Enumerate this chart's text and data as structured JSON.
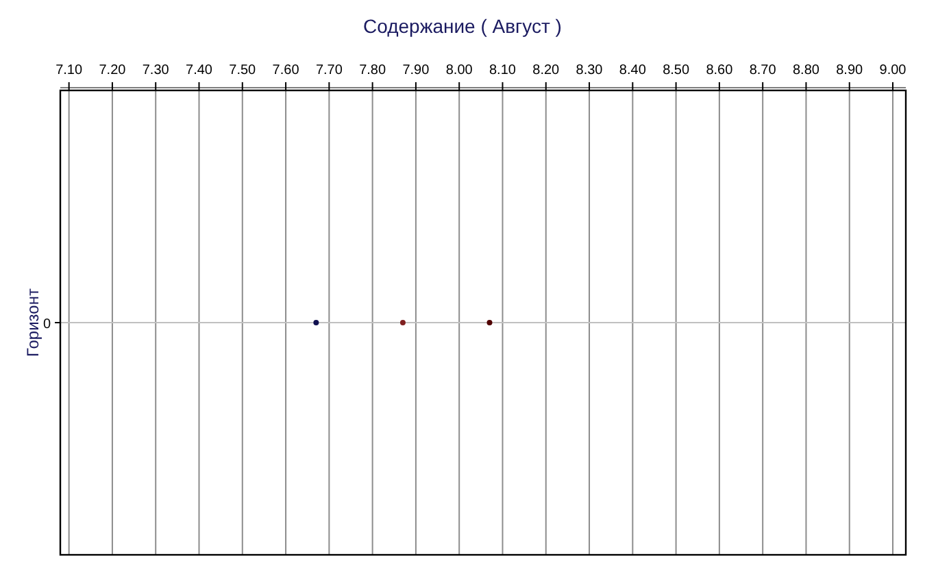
{
  "chart_data": {
    "type": "scatter",
    "orientation": "horizontal",
    "title": "Содержание    ( Август )",
    "ylabel": "Горизонт",
    "categories": [
      "0"
    ],
    "series": [
      {
        "color": "#101050",
        "values": [
          7.67
        ]
      },
      {
        "color": "#802020",
        "values": [
          7.87
        ]
      },
      {
        "color": "#500000",
        "values": [
          8.07
        ]
      }
    ],
    "xlim": [
      7.08,
      9.03
    ],
    "xticks": [
      {
        "value": 7.1,
        "label": "7.10"
      },
      {
        "value": 7.2,
        "label": "7.20"
      },
      {
        "value": 7.3,
        "label": "7.30"
      },
      {
        "value": 7.4,
        "label": "7.40"
      },
      {
        "value": 7.5,
        "label": "7.50"
      },
      {
        "value": 7.6,
        "label": "7.60"
      },
      {
        "value": 7.7,
        "label": "7.70"
      },
      {
        "value": 7.8,
        "label": "7.80"
      },
      {
        "value": 7.9,
        "label": "7.90"
      },
      {
        "value": 8.0,
        "label": "8.00"
      },
      {
        "value": 8.1,
        "label": "8.10"
      },
      {
        "value": 8.2,
        "label": "8.20"
      },
      {
        "value": 8.3,
        "label": "8.30"
      },
      {
        "value": 8.4,
        "label": "8.40"
      },
      {
        "value": 8.5,
        "label": "8.50"
      },
      {
        "value": 8.6,
        "label": "8.60"
      },
      {
        "value": 8.7,
        "label": "8.70"
      },
      {
        "value": 8.8,
        "label": "8.80"
      },
      {
        "value": 8.9,
        "label": "8.90"
      },
      {
        "value": 9.0,
        "label": "9.00"
      }
    ],
    "ref_lines": [
      {
        "axis": "y",
        "value": "0",
        "color": "#c0c0c0"
      }
    ],
    "grid": "x",
    "marker": "circle"
  }
}
